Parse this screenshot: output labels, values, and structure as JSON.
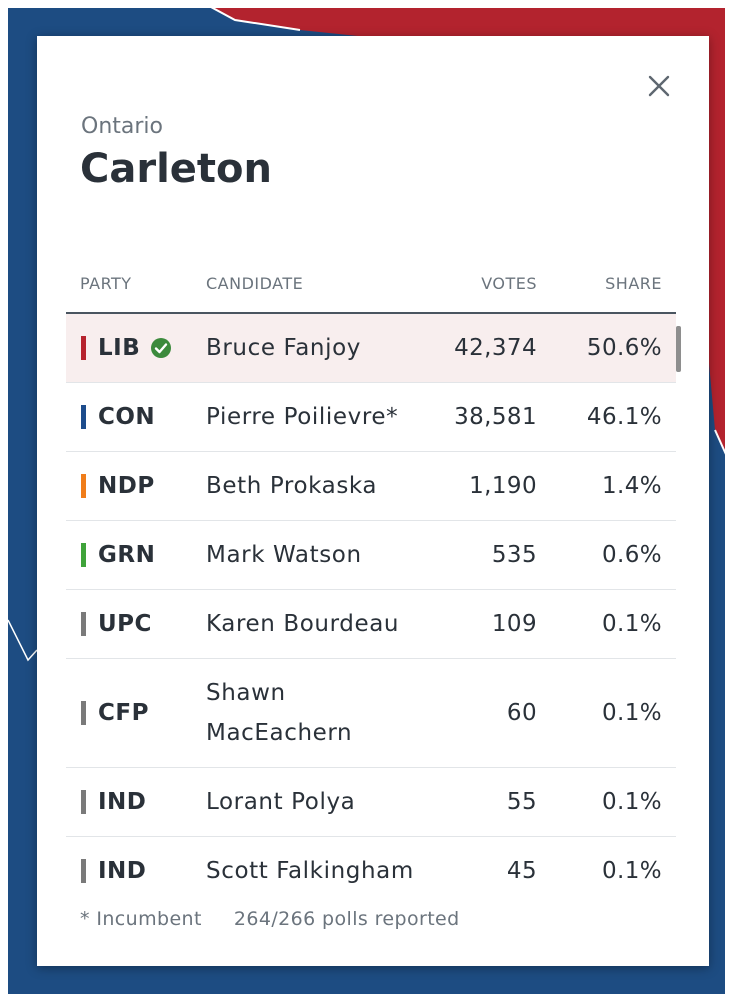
{
  "province": "Ontario",
  "riding": "Carleton",
  "headers": {
    "party": "PARTY",
    "candidate": "CANDIDATE",
    "votes": "VOTES",
    "share": "SHARE"
  },
  "rows": [
    {
      "party": "LIB",
      "color": "#b6232e",
      "candidate": "Bruce Fanjoy",
      "votes": "42,374",
      "share": "50.6%",
      "winner": true
    },
    {
      "party": "CON",
      "color": "#1d4c8c",
      "candidate": "Pierre Poilievre*",
      "votes": "38,581",
      "share": "46.1%"
    },
    {
      "party": "NDP",
      "color": "#f07d1a",
      "candidate": "Beth Prokaska",
      "votes": "1,190",
      "share": "1.4%"
    },
    {
      "party": "GRN",
      "color": "#3fa33a",
      "candidate": "Mark Watson",
      "votes": "535",
      "share": "0.6%"
    },
    {
      "party": "UPC",
      "color": "#7a7a7a",
      "candidate": "Karen Bourdeau",
      "votes": "109",
      "share": "0.1%"
    },
    {
      "party": "CFP",
      "color": "#7a7a7a",
      "candidate": "Shawn MacEachern",
      "votes": "60",
      "share": "0.1%"
    },
    {
      "party": "IND",
      "color": "#7a7a7a",
      "candidate": "Lorant Polya",
      "votes": "55",
      "share": "0.1%"
    },
    {
      "party": "IND",
      "color": "#7a7a7a",
      "candidate": "Scott Falkingham",
      "votes": "45",
      "share": "0.1%"
    }
  ],
  "footer": {
    "incumbent_note": "* Incumbent",
    "polls_reported": "264/266 polls reported"
  },
  "icons": {
    "close": "close-icon",
    "winner": "check-circle-icon"
  },
  "colors": {
    "winner_check": "#3c8a3c",
    "winner_row_bg": "#f8eeee",
    "map_blue": "#1d4c82",
    "map_red": "#b3232e"
  }
}
